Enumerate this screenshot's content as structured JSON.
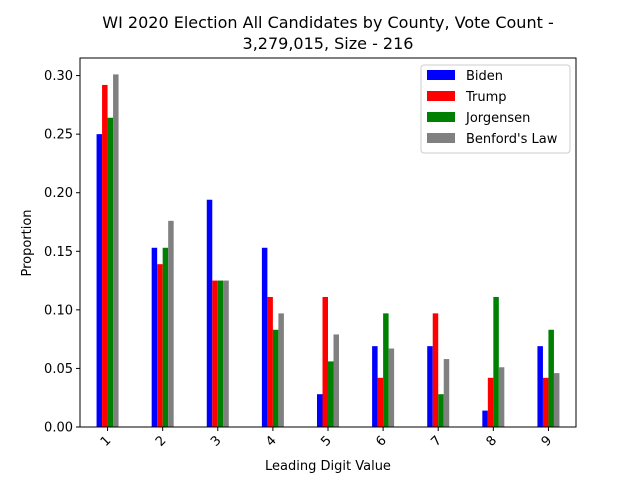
{
  "chart_data": {
    "type": "bar",
    "title_lines": [
      "WI 2020 Election All Candidates by County, Vote Count -",
      "3,279,015, Size - 216"
    ],
    "xlabel": "Leading Digit Value",
    "ylabel": "Proportion",
    "categories": [
      "1",
      "2",
      "3",
      "4",
      "5",
      "6",
      "7",
      "8",
      "9"
    ],
    "ylim": [
      0,
      0.315
    ],
    "yticks": [
      "0.00",
      "0.05",
      "0.10",
      "0.15",
      "0.20",
      "0.25",
      "0.30"
    ],
    "legend_position": "top-right",
    "grid": false,
    "series": [
      {
        "name": "Biden",
        "color": "#0000ff",
        "values": [
          0.25,
          0.153,
          0.194,
          0.153,
          0.028,
          0.069,
          0.069,
          0.014,
          0.069
        ]
      },
      {
        "name": "Trump",
        "color": "#ff0000",
        "values": [
          0.292,
          0.139,
          0.125,
          0.111,
          0.111,
          0.042,
          0.097,
          0.042,
          0.042
        ]
      },
      {
        "name": "Jorgensen",
        "color": "#008000",
        "values": [
          0.264,
          0.153,
          0.125,
          0.083,
          0.056,
          0.097,
          0.028,
          0.111,
          0.083
        ]
      },
      {
        "name": "Benford's Law",
        "color": "#808080",
        "values": [
          0.301,
          0.176,
          0.125,
          0.097,
          0.079,
          0.067,
          0.058,
          0.051,
          0.046
        ]
      }
    ]
  }
}
